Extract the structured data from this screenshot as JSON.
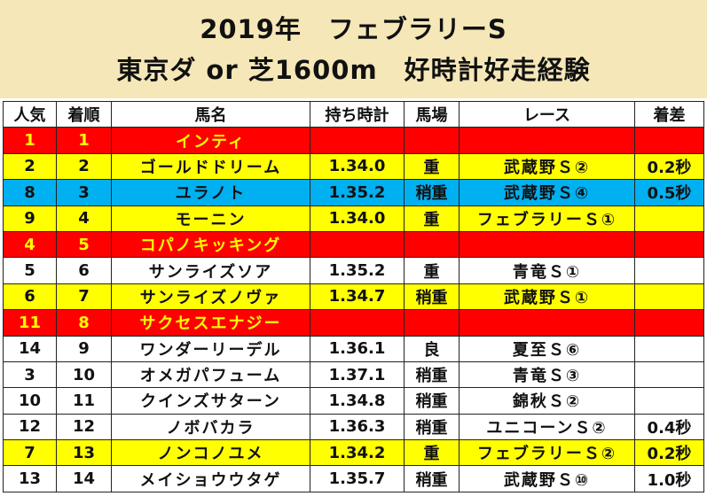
{
  "title": {
    "line1": "2019年　フェブラリーS",
    "line2": "東京ダ or 芝1600m　好時計好走経験"
  },
  "headers": [
    "人気",
    "着順",
    "馬名",
    "持ち時計",
    "馬場",
    "レース",
    "着差"
  ],
  "rows": [
    {
      "style": "red",
      "pop": "1",
      "rank": "1",
      "name": "インティ",
      "time": "",
      "going": "",
      "race": "",
      "margin": ""
    },
    {
      "style": "yellow",
      "pop": "2",
      "rank": "2",
      "name": "ゴールドドリーム",
      "time": "1.34.0",
      "going": "重",
      "race": "武蔵野Ｓ②",
      "margin": "0.2秒"
    },
    {
      "style": "blue",
      "pop": "8",
      "rank": "3",
      "name": "ユラノト",
      "time": "1.35.2",
      "going": "稍重",
      "race": "武蔵野Ｓ④",
      "margin": "0.5秒"
    },
    {
      "style": "yellow",
      "pop": "9",
      "rank": "4",
      "name": "モーニン",
      "time": "1.34.0",
      "going": "重",
      "race": "フェブラリーＳ①",
      "margin": ""
    },
    {
      "style": "red",
      "pop": "4",
      "rank": "5",
      "name": "コパノキッキング",
      "time": "",
      "going": "",
      "race": "",
      "margin": ""
    },
    {
      "style": "white",
      "pop": "5",
      "rank": "6",
      "name": "サンライズソア",
      "time": "1.35.2",
      "going": "重",
      "race": "青竜Ｓ①",
      "margin": ""
    },
    {
      "style": "yellow",
      "pop": "6",
      "rank": "7",
      "name": "サンライズノヴァ",
      "time": "1.34.7",
      "going": "稍重",
      "race": "武蔵野Ｓ①",
      "margin": ""
    },
    {
      "style": "red",
      "pop": "11",
      "rank": "8",
      "name": "サクセスエナジー",
      "time": "",
      "going": "",
      "race": "",
      "margin": ""
    },
    {
      "style": "white",
      "pop": "14",
      "rank": "9",
      "name": "ワンダーリーデル",
      "time": "1.36.1",
      "going": "良",
      "race": "夏至Ｓ⑥",
      "margin": ""
    },
    {
      "style": "white",
      "pop": "3",
      "rank": "10",
      "name": "オメガパフューム",
      "time": "1.37.1",
      "going": "稍重",
      "race": "青竜Ｓ③",
      "margin": ""
    },
    {
      "style": "white",
      "pop": "10",
      "rank": "11",
      "name": "クインズサターン",
      "time": "1.34.8",
      "going": "稍重",
      "race": "錦秋Ｓ②",
      "margin": ""
    },
    {
      "style": "white",
      "pop": "12",
      "rank": "12",
      "name": "ノボバカラ",
      "time": "1.36.3",
      "going": "稍重",
      "race": "ユニコーンＳ②",
      "margin": "0.4秒"
    },
    {
      "style": "yellow",
      "pop": "7",
      "rank": "13",
      "name": "ノンコノユメ",
      "time": "1.34.2",
      "going": "重",
      "race": "フェブラリーＳ②",
      "margin": "0.2秒"
    },
    {
      "style": "white",
      "pop": "13",
      "rank": "14",
      "name": "メイショウウタゲ",
      "time": "1.35.7",
      "going": "稍重",
      "race": "武蔵野Ｓ⑩",
      "margin": "1.0秒"
    }
  ]
}
